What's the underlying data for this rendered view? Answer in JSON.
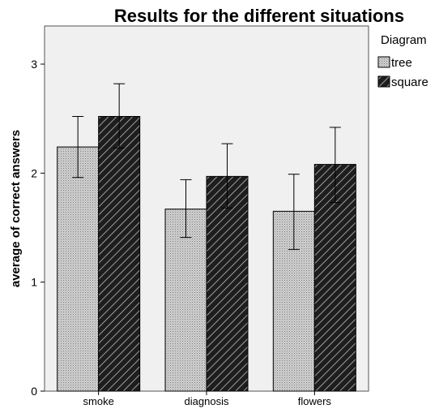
{
  "chart_data": {
    "type": "bar",
    "title": "Results for the different situations",
    "ylabel": "average of correct answers",
    "xlabel": "",
    "ylim": [
      0,
      3.35
    ],
    "yticks": [
      0,
      1,
      2,
      3
    ],
    "categories": [
      "smoke",
      "diagnosis",
      "flowers"
    ],
    "legend": {
      "title": "Diagram",
      "placement": "top-right"
    },
    "grid": false,
    "series": [
      {
        "name": "tree",
        "pattern": "dots",
        "color": "#c8c8c8",
        "values": [
          2.24,
          1.67,
          1.65
        ],
        "err_low": [
          1.96,
          1.41,
          1.3
        ],
        "err_high": [
          2.52,
          1.94,
          1.99
        ]
      },
      {
        "name": "square",
        "pattern": "diagonal",
        "color": "#2a2a2a",
        "values": [
          2.52,
          1.97,
          2.08
        ],
        "err_low": [
          2.23,
          1.68,
          1.73
        ],
        "err_high": [
          2.82,
          2.27,
          2.42
        ]
      }
    ]
  }
}
